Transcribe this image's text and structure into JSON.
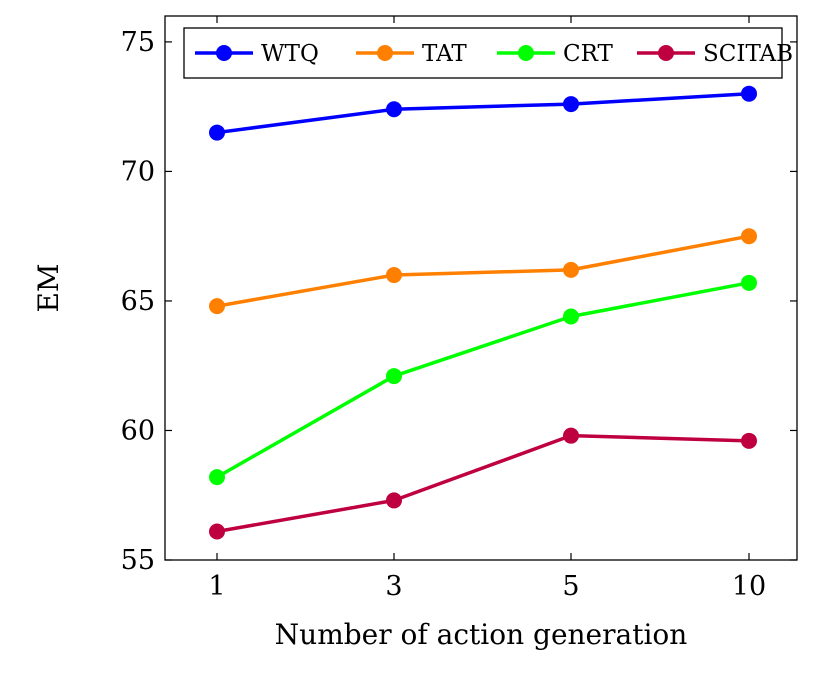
{
  "chart_data": {
    "type": "line",
    "x_categories": [
      "1",
      "3",
      "5",
      "10"
    ],
    "xlabel": "Number of action generation",
    "ylabel": "EM",
    "ylim": [
      55,
      76
    ],
    "y_ticks": [
      "55",
      "60",
      "65",
      "70",
      "75"
    ],
    "grid": false,
    "legend_position": "top",
    "series": [
      {
        "name": "WTQ",
        "color": "#0000ff",
        "values": [
          71.5,
          72.4,
          72.6,
          73.0
        ]
      },
      {
        "name": "TAT",
        "color": "#ff8000",
        "values": [
          64.8,
          66.0,
          66.2,
          67.5
        ]
      },
      {
        "name": "CRT",
        "color": "#00ff00",
        "values": [
          58.2,
          62.1,
          64.4,
          65.7
        ]
      },
      {
        "name": "SCITAB",
        "color": "#bf0040",
        "values": [
          56.1,
          57.3,
          59.8,
          59.6
        ]
      }
    ]
  }
}
